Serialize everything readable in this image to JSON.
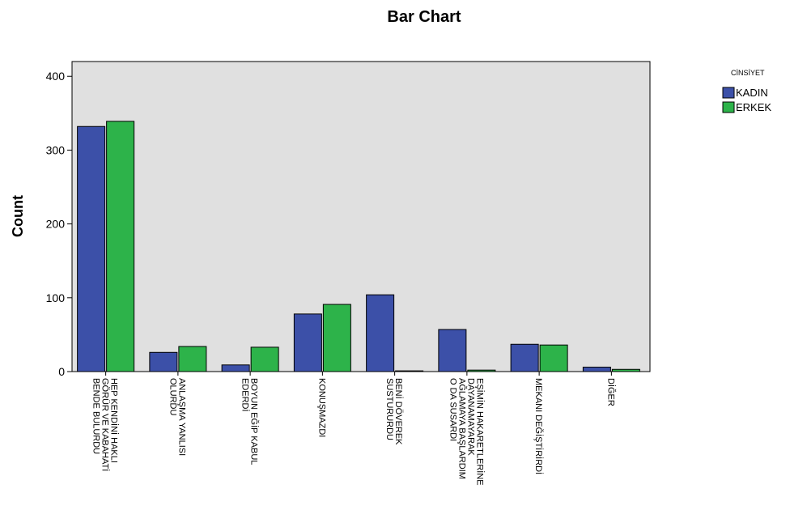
{
  "chart_data": {
    "type": "bar",
    "title": "Bar Chart",
    "xlabel": "",
    "ylabel": "Count",
    "ylim": [
      0,
      420
    ],
    "yticks": [
      0,
      100,
      200,
      300,
      400
    ],
    "grid": false,
    "legend_title": "CİNSİYET",
    "legend_position": "top-right",
    "categories": [
      [
        "HEP KENDİNİ HAKLI",
        "GÖRÜR VE KABAHATİ",
        "BENDE BULURDU"
      ],
      [
        "ANLAŞMA YANLISI",
        "OLURDU"
      ],
      [
        "BOYUN EĞİP KABUL",
        "EDERDİ"
      ],
      [
        "KONUŞMAZDI"
      ],
      [
        "BENİ DÖVEREK",
        "SUSTURURDU"
      ],
      [
        "EŞİMİN HAKARETLERİNE",
        "DAYANAMAYARAK",
        "AĞLAMAYA BAŞLARDIM",
        "O DA SUSARDI"
      ],
      [
        "MEKANI DEĞİŞTİRİRDİ"
      ],
      [
        "DİĞER"
      ]
    ],
    "series": [
      {
        "name": "KADIN",
        "color": "#3c50a8",
        "values": [
          332,
          26,
          9,
          78,
          104,
          57,
          37,
          6
        ]
      },
      {
        "name": "ERKEK",
        "color": "#2db34a",
        "values": [
          339,
          34,
          33,
          91,
          1,
          2,
          36,
          3
        ]
      }
    ],
    "plot_background": "#e0e0e0"
  }
}
